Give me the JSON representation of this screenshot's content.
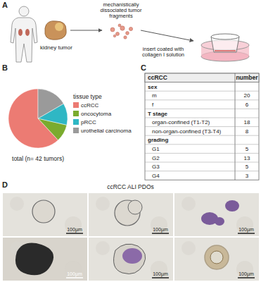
{
  "panel_labels": [
    "A",
    "B",
    "C",
    "D"
  ],
  "schematic": {
    "tumor_label": "kidney tumor",
    "fragments_label": [
      "mechanistically",
      "dissociated tumor",
      "fragments"
    ],
    "insert_label": [
      "insert coated with",
      "collagen I solution"
    ]
  },
  "chart_data": {
    "type": "pie",
    "title": "total (n= 42 tumors)",
    "legend_title": "tissue type",
    "categories": [
      "ccRCC",
      "oncocytoma",
      "pRCC",
      "urothelial carcinoma"
    ],
    "values": [
      26,
      4,
      5,
      7
    ],
    "colors": [
      "#ec7b73",
      "#7aab2e",
      "#2fb7c4",
      "#9a9a9a"
    ],
    "legend": "right"
  },
  "table": {
    "header": [
      "ccRCC",
      "number"
    ],
    "rows": [
      [
        "sex"
      ],
      [
        "m",
        20
      ],
      [
        "f",
        6
      ],
      [
        "T stage"
      ],
      [
        "organ-confined (T1-T2)",
        18
      ],
      [
        "non-organ-confined (T3-T4)",
        8
      ],
      [
        "grading"
      ],
      [
        "G1",
        5
      ],
      [
        "G2",
        13
      ],
      [
        "G3",
        5
      ],
      [
        "G4",
        3
      ]
    ]
  },
  "micrographs": {
    "title": "ccRCC ALI PDOs",
    "scale_bar_labels": [
      "100µm",
      "100µm",
      "100µm",
      "100µm",
      "100µm",
      "100µm"
    ]
  }
}
